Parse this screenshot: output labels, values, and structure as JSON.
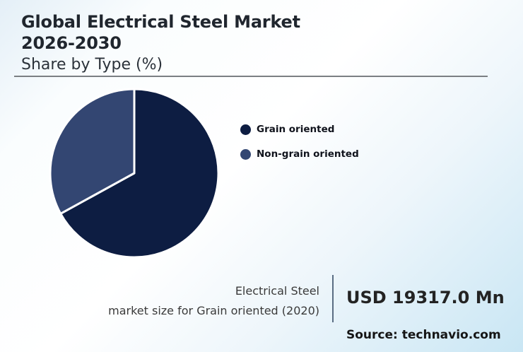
{
  "header": {
    "title_lines": [
      "Global Electrical Steel Market",
      "2026-2030"
    ],
    "subtitle": "Share by Type (%)"
  },
  "chart_data": {
    "type": "pie",
    "title": "Global Electrical Steel Market 2026-2030",
    "subtitle": "Share by Type (%)",
    "slices": [
      {
        "label": "Grain oriented",
        "value": 67,
        "color": "#0d1d42"
      },
      {
        "label": "Non-grain oriented",
        "value": 33,
        "color": "#334672"
      }
    ],
    "start_angle_deg": 0,
    "direction": "clockwise",
    "legend_position": "right",
    "slice_border_color": "#ffffff"
  },
  "footer": {
    "stat_label_lines": [
      "Electrical Steel",
      "market size for Grain oriented (2020)"
    ],
    "stat_value": "USD 19317.0 Mn",
    "source": "Source: technavio.com"
  },
  "colors": {
    "background_top_left": "#e4eff7",
    "background_bottom_right": "#c9e6f4",
    "title_text": "#20262e",
    "rule": "#7b7f83",
    "stat_divider": "#5a6d83"
  }
}
